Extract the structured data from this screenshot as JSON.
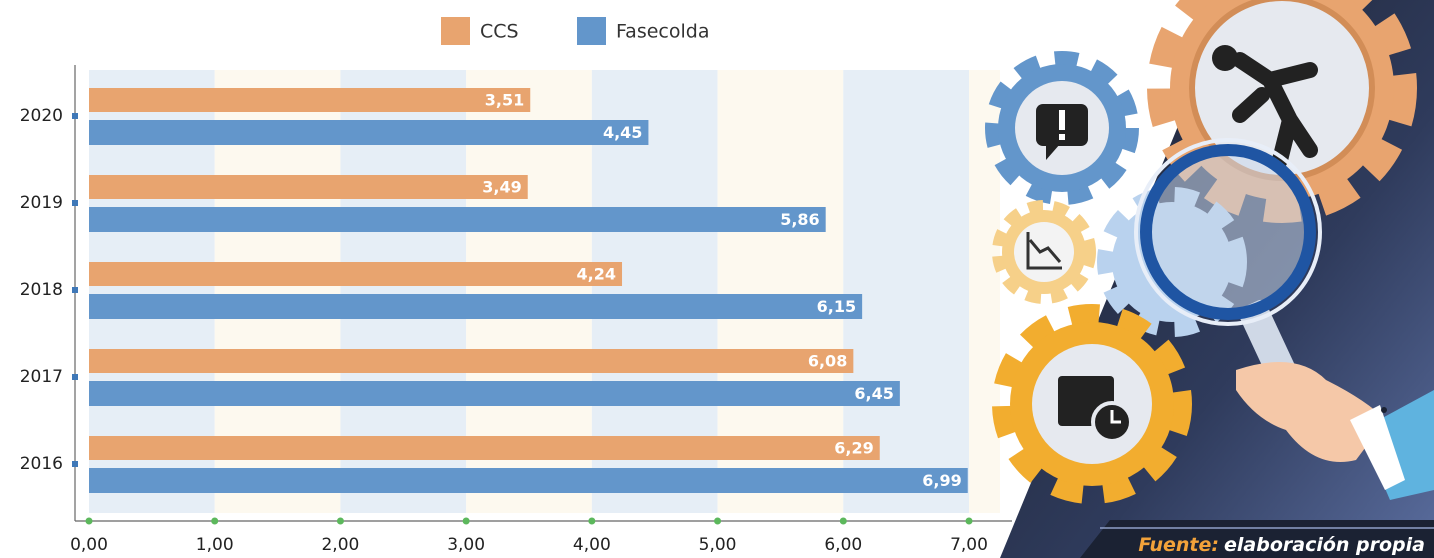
{
  "chart_data": {
    "type": "hbar",
    "categories": [
      "2020",
      "2019",
      "2018",
      "2017",
      "2016"
    ],
    "series": [
      {
        "name": "CCS",
        "color": "#e8a46f",
        "values": [
          3.51,
          3.49,
          4.24,
          6.08,
          6.29
        ],
        "value_labels": [
          "3,51",
          "3,49",
          "4,24",
          "6,08",
          "6,29"
        ]
      },
      {
        "name": "Fasecolda",
        "color": "#6396cb",
        "values": [
          4.45,
          5.86,
          6.15,
          6.45,
          6.99
        ],
        "value_labels": [
          "4,45",
          "5,86",
          "6,15",
          "6,45",
          "6,99"
        ]
      }
    ],
    "xlim": [
      0,
      7
    ],
    "xticks": [
      {
        "value": 0,
        "label": "0,00"
      },
      {
        "value": 1,
        "label": "1,00"
      },
      {
        "value": 2,
        "label": "2,00"
      },
      {
        "value": 3,
        "label": "3,00"
      },
      {
        "value": 4,
        "label": "4,00"
      },
      {
        "value": 5,
        "label": "5,00"
      },
      {
        "value": 6,
        "label": "6,00"
      },
      {
        "value": 7,
        "label": "7,00"
      }
    ],
    "grid": true,
    "legend": "top",
    "source_label": "Fuente:",
    "source": "elaboración propia"
  }
}
